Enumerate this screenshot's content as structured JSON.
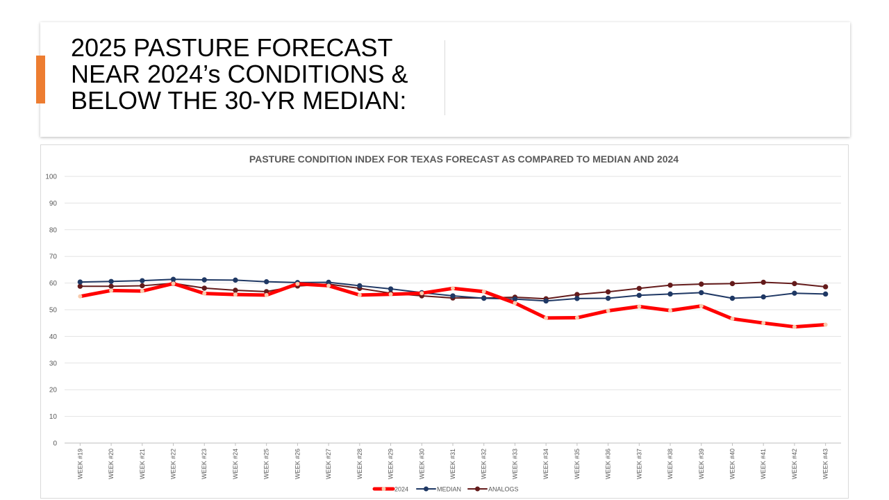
{
  "slide": {
    "title_lines": [
      "2025 PASTURE FORECAST",
      "NEAR 2024’s CONDITIONS &",
      "BELOW THE 30-YR MEDIAN:"
    ],
    "accent_color": "#ED7D31"
  },
  "chart_data": {
    "type": "line",
    "title": "PASTURE CONDITION INDEX FOR TEXAS FORECAST AS COMPARED TO MEDIAN AND 2024",
    "xlabel": "",
    "ylabel": "",
    "ylim": [
      0,
      100
    ],
    "yticks": [
      0,
      10,
      20,
      30,
      40,
      50,
      60,
      70,
      80,
      90,
      100
    ],
    "grid": true,
    "legend_position": "bottom-center",
    "categories": [
      "WEEK #19",
      "WEEK #20",
      "WEEK #21",
      "WEEK #22",
      "WEEK #23",
      "WEEK #24",
      "WEEK #25",
      "WEEK #26",
      "WEEK #27",
      "WEEK #28",
      "WEEK #29",
      "WEEK #30",
      "WEEK #31",
      "WEEK #32",
      "WEEK #33",
      "WEEK #34",
      "WEEK #35",
      "WEEK #36",
      "WEEK #37",
      "WEEK #38",
      "WEEK #39",
      "WEEK #40",
      "WEEK #41",
      "WEEK #42",
      "WEEK #43"
    ],
    "series": [
      {
        "name": "2024",
        "color": "#FF0000",
        "marker_color": "#F8CBAD",
        "values": [
          55.0,
          57.2,
          57.0,
          59.8,
          56.1,
          55.7,
          55.5,
          59.7,
          59.0,
          55.5,
          55.8,
          56.2,
          58.0,
          56.8,
          52.5,
          46.9,
          47.0,
          49.6,
          51.2,
          49.7,
          51.4,
          46.6,
          45.0,
          43.6,
          44.4
        ]
      },
      {
        "name": "MEDIAN",
        "color": "#1F3864",
        "marker_color": "#1F3864",
        "values": [
          60.4,
          60.6,
          60.9,
          61.4,
          61.2,
          61.1,
          60.5,
          60.2,
          60.3,
          59.0,
          57.8,
          56.4,
          55.2,
          54.3,
          54.0,
          53.3,
          54.2,
          54.3,
          55.4,
          55.9,
          56.4,
          54.3,
          54.8,
          56.2,
          55.9
        ]
      },
      {
        "name": "ANALOGS",
        "color": "#641B1B",
        "marker_color": "#641B1B",
        "values": [
          58.8,
          58.8,
          59.0,
          59.9,
          58.1,
          57.3,
          56.8,
          58.9,
          59.6,
          58.0,
          56.2,
          55.2,
          54.4,
          54.4,
          54.7,
          54.1,
          55.7,
          56.7,
          58.0,
          59.2,
          59.6,
          59.8,
          60.3,
          59.8,
          58.6
        ]
      }
    ]
  }
}
